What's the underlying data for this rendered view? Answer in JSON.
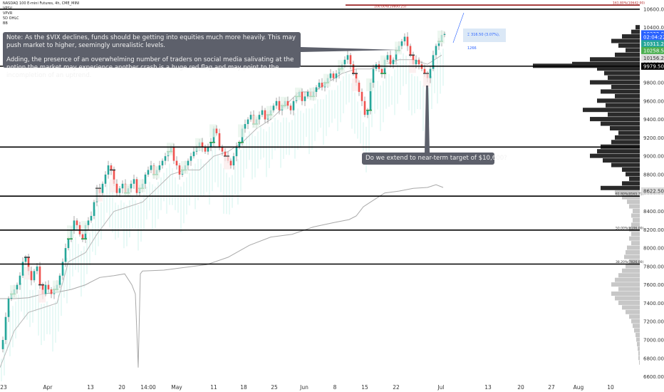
{
  "header": {
    "symbol_line": "NASDAQ 100 E-mini Futures, 4h, CME_MINI",
    "indicators": [
      "VPSV",
      "VPVR",
      "5D OHLC",
      "BB"
    ]
  },
  "annotations": {
    "note_line1": "Note: As the $VIX declines, funds should be getting into equities much more heavily. This may push market to higher, seemingly unrealistic levels.",
    "note_line2": "Adding, the presence of an overwhelming number of traders on social media salivating at the notion the market may experience another crash is a huge red flag and may point to the incompletion of an uptrend.",
    "target_question": "Do we extend to near-term target of $10,600?",
    "measure_label": "316.50 (3.07%), 1266",
    "measure_icon": "vertical-range-icon"
  },
  "colors": {
    "up_candle": "#26a69a",
    "down_candle": "#ef5350",
    "bb_line": "#b8b8b8",
    "profile_dark": "#2a2a2a",
    "profile_light": "#c7c7c7",
    "last_price_bg": "#000000",
    "callout_bg": "#5d606b",
    "blue_accent": "#2962ff"
  },
  "chart_data": {
    "type": "candlestick",
    "ylim": [
      6550,
      10700
    ],
    "y_ticks": [
      6600,
      6800,
      7000,
      7200,
      7400,
      7600,
      7800,
      8000,
      8200,
      8400,
      8600,
      8800,
      9000,
      9200,
      9400,
      9600,
      9800,
      10000,
      10200,
      10400,
      10600
    ],
    "x_tick_labels": [
      "23",
      "Apr",
      "13",
      "20",
      "14:00",
      "May",
      "11",
      "18",
      "25",
      "Jun",
      "8",
      "15",
      "22",
      "Jul",
      "13",
      "20",
      "27",
      "Aug",
      "10"
    ],
    "horizontal_lines": [
      10600,
      9979.5,
      9100,
      8565.75,
      8196,
      7826
    ],
    "fib_labels": [
      {
        "text": "161.80%(10642.00)",
        "price": 10645
      },
      {
        "text": "100.00%(10600.25)",
        "price": 10605
      },
      {
        "text": "61.80%(8565.75)",
        "price": 8565.75
      },
      {
        "text": "50.00%(8196.00)",
        "price": 8196
      },
      {
        "text": "38.20%(7826.00)",
        "price": 7826
      }
    ],
    "price_badges": [
      {
        "text": "10332.00",
        "price": 10332,
        "bg": "#2962ff",
        "fg": "#ffffff"
      },
      {
        "text": "02:04:22",
        "price": 10300,
        "bg": "#2962ff",
        "fg": "#ffffff"
      },
      {
        "text": "10311.25",
        "price": 10225,
        "bg": "#26a69a",
        "fg": "#ffffff"
      },
      {
        "text": "10258.50",
        "price": 10150,
        "bg": "#4caf50",
        "fg": "#ffffff"
      },
      {
        "text": "10156.25",
        "price": 10070,
        "bg": "#dddddd",
        "fg": "#333333"
      },
      {
        "text": "9979.50",
        "price": 9979.5,
        "bg": "#000000",
        "fg": "#ffffff"
      },
      {
        "text": "8622.50",
        "price": 8622.5,
        "bg": "#dddddd",
        "fg": "#333333"
      }
    ],
    "close_path": [
      [
        0,
        6900
      ],
      [
        4,
        7000
      ],
      [
        8,
        7250
      ],
      [
        12,
        7450
      ],
      [
        16,
        7500
      ],
      [
        20,
        7550
      ],
      [
        24,
        7600
      ],
      [
        28,
        7700
      ],
      [
        32,
        7850
      ],
      [
        36,
        7900
      ],
      [
        40,
        7750
      ],
      [
        44,
        7650
      ],
      [
        48,
        7750
      ],
      [
        52,
        7800
      ],
      [
        56,
        7600
      ],
      [
        60,
        7500
      ],
      [
        64,
        7600
      ],
      [
        68,
        7550
      ],
      [
        72,
        7500
      ],
      [
        76,
        7550
      ],
      [
        80,
        7600
      ],
      [
        84,
        7700
      ],
      [
        88,
        7850
      ],
      [
        92,
        8000
      ],
      [
        96,
        8100
      ],
      [
        100,
        8200
      ],
      [
        104,
        8300
      ],
      [
        108,
        8250
      ],
      [
        112,
        8150
      ],
      [
        116,
        8100
      ],
      [
        120,
        8250
      ],
      [
        124,
        8300
      ],
      [
        128,
        8350
      ],
      [
        132,
        8500
      ],
      [
        136,
        8650
      ],
      [
        140,
        8600
      ],
      [
        144,
        8700
      ],
      [
        148,
        8800
      ],
      [
        152,
        8900
      ],
      [
        156,
        8850
      ],
      [
        160,
        8700
      ],
      [
        164,
        8600
      ],
      [
        168,
        8650
      ],
      [
        172,
        8700
      ],
      [
        176,
        8600
      ],
      [
        180,
        8650
      ],
      [
        184,
        8700
      ],
      [
        188,
        8750
      ],
      [
        192,
        8600
      ],
      [
        196,
        8650
      ],
      [
        200,
        8700
      ],
      [
        204,
        8800
      ],
      [
        208,
        8850
      ],
      [
        212,
        8900
      ],
      [
        216,
        8800
      ],
      [
        220,
        8850
      ],
      [
        224,
        8900
      ],
      [
        228,
        8950
      ],
      [
        232,
        9000
      ],
      [
        236,
        9050
      ],
      [
        240,
        9100
      ],
      [
        244,
        8950
      ],
      [
        248,
        8900
      ],
      [
        252,
        8800
      ],
      [
        256,
        8850
      ],
      [
        260,
        8900
      ],
      [
        264,
        8950
      ],
      [
        268,
        9000
      ],
      [
        272,
        9050
      ],
      [
        276,
        9100
      ],
      [
        280,
        9150
      ],
      [
        284,
        9100
      ],
      [
        288,
        9050
      ],
      [
        292,
        9100
      ],
      [
        296,
        9150
      ],
      [
        300,
        9300
      ],
      [
        304,
        9250
      ],
      [
        308,
        9100
      ],
      [
        312,
        9050
      ],
      [
        316,
        9000
      ],
      [
        320,
        8950
      ],
      [
        324,
        8900
      ],
      [
        328,
        9000
      ],
      [
        332,
        9100
      ],
      [
        336,
        9150
      ],
      [
        340,
        9300
      ],
      [
        344,
        9350
      ],
      [
        348,
        9400
      ],
      [
        352,
        9450
      ],
      [
        356,
        9350
      ],
      [
        360,
        9400
      ],
      [
        364,
        9450
      ],
      [
        368,
        9500
      ],
      [
        372,
        9400
      ],
      [
        376,
        9450
      ],
      [
        380,
        9500
      ],
      [
        384,
        9550
      ],
      [
        388,
        9600
      ],
      [
        392,
        9500
      ],
      [
        396,
        9550
      ],
      [
        400,
        9600
      ],
      [
        404,
        9550
      ],
      [
        408,
        9500
      ],
      [
        412,
        9600
      ],
      [
        416,
        9650
      ],
      [
        420,
        9700
      ],
      [
        424,
        9600
      ],
      [
        428,
        9650
      ],
      [
        432,
        9700
      ],
      [
        436,
        9650
      ],
      [
        440,
        9700
      ],
      [
        444,
        9750
      ],
      [
        448,
        9800
      ],
      [
        452,
        9750
      ],
      [
        456,
        9800
      ],
      [
        460,
        9850
      ],
      [
        464,
        9900
      ],
      [
        468,
        9850
      ],
      [
        472,
        9900
      ],
      [
        476,
        9950
      ],
      [
        480,
        10000
      ],
      [
        484,
        10050
      ],
      [
        488,
        10100
      ],
      [
        492,
        10000
      ],
      [
        496,
        9900
      ],
      [
        500,
        9800
      ],
      [
        504,
        9700
      ],
      [
        508,
        9600
      ],
      [
        512,
        9450
      ],
      [
        516,
        9500
      ],
      [
        520,
        9800
      ],
      [
        524,
        9950
      ],
      [
        528,
        10000
      ],
      [
        532,
        9950
      ],
      [
        536,
        9900
      ],
      [
        540,
        10050
      ],
      [
        544,
        10100
      ],
      [
        548,
        10000
      ],
      [
        552,
        10050
      ],
      [
        556,
        10150
      ],
      [
        560,
        10200
      ],
      [
        564,
        10250
      ],
      [
        568,
        10300
      ],
      [
        572,
        10200
      ],
      [
        576,
        10100
      ],
      [
        580,
        10000
      ],
      [
        584,
        10050
      ],
      [
        588,
        10000
      ],
      [
        592,
        9950
      ],
      [
        596,
        9900
      ],
      [
        600,
        9850
      ],
      [
        604,
        9950
      ],
      [
        608,
        10100
      ],
      [
        612,
        10200
      ],
      [
        616,
        10250
      ],
      [
        620,
        10320
      ],
      [
        624,
        10330
      ]
    ],
    "bb_path": [
      [
        0,
        6700
      ],
      [
        20,
        7100
      ],
      [
        40,
        7300
      ],
      [
        60,
        7350
      ],
      [
        80,
        7400
      ],
      [
        96,
        7850
      ],
      [
        120,
        7950
      ],
      [
        136,
        8150
      ],
      [
        160,
        8400
      ],
      [
        180,
        8450
      ],
      [
        200,
        8500
      ],
      [
        220,
        8650
      ],
      [
        240,
        8800
      ],
      [
        260,
        8850
      ],
      [
        280,
        8850
      ],
      [
        300,
        9000
      ],
      [
        320,
        9050
      ],
      [
        340,
        9150
      ],
      [
        360,
        9300
      ],
      [
        380,
        9400
      ],
      [
        400,
        9550
      ],
      [
        420,
        9700
      ],
      [
        440,
        9700
      ],
      [
        460,
        9800
      ],
      [
        480,
        9900
      ],
      [
        500,
        9950
      ],
      [
        520,
        9950
      ],
      [
        540,
        10000
      ],
      [
        560,
        10050
      ],
      [
        580,
        10050
      ],
      [
        600,
        10000
      ],
      [
        620,
        10100
      ]
    ],
    "vwap_path": [
      [
        0,
        7450
      ],
      [
        20,
        7450
      ],
      [
        40,
        7460
      ],
      [
        60,
        7500
      ],
      [
        80,
        7520
      ],
      [
        100,
        7550
      ],
      [
        120,
        7600
      ],
      [
        140,
        7680
      ],
      [
        160,
        7700
      ],
      [
        175,
        7720
      ],
      [
        185,
        7600
      ],
      [
        190,
        7500
      ],
      [
        194,
        6700
      ],
      [
        197,
        7720
      ],
      [
        200,
        7750
      ],
      [
        230,
        7760
      ],
      [
        260,
        7790
      ],
      [
        290,
        7820
      ],
      [
        320,
        7900
      ],
      [
        350,
        8030
      ],
      [
        380,
        8120
      ],
      [
        410,
        8150
      ],
      [
        440,
        8230
      ],
      [
        470,
        8280
      ],
      [
        490,
        8310
      ],
      [
        500,
        8350
      ],
      [
        510,
        8450
      ],
      [
        520,
        8500
      ],
      [
        540,
        8600
      ],
      [
        560,
        8620
      ],
      [
        580,
        8650
      ],
      [
        600,
        8660
      ],
      [
        612,
        8690
      ],
      [
        622,
        8660
      ]
    ],
    "profile": [
      [
        10400,
        6
      ],
      [
        10350,
        12
      ],
      [
        10300,
        25
      ],
      [
        10250,
        40
      ],
      [
        10200,
        30
      ],
      [
        10150,
        20
      ],
      [
        10100,
        35
      ],
      [
        10050,
        70
      ],
      [
        10000,
        95
      ],
      [
        9980,
        150
      ],
      [
        9950,
        60
      ],
      [
        9900,
        50
      ],
      [
        9850,
        45
      ],
      [
        9800,
        70
      ],
      [
        9750,
        40
      ],
      [
        9700,
        55
      ],
      [
        9650,
        35
      ],
      [
        9600,
        60
      ],
      [
        9550,
        48
      ],
      [
        9500,
        80
      ],
      [
        9450,
        45
      ],
      [
        9400,
        70
      ],
      [
        9350,
        55
      ],
      [
        9300,
        42
      ],
      [
        9250,
        30
      ],
      [
        9200,
        35
      ],
      [
        9150,
        40
      ],
      [
        9100,
        55
      ],
      [
        9050,
        60
      ],
      [
        9000,
        70
      ],
      [
        8950,
        52
      ],
      [
        8900,
        40
      ],
      [
        8850,
        25
      ],
      [
        8800,
        20
      ],
      [
        8750,
        15
      ],
      [
        8700,
        25
      ],
      [
        8650,
        55
      ],
      [
        8600,
        35
      ],
      [
        8550,
        25
      ],
      [
        8500,
        18
      ],
      [
        8450,
        15
      ],
      [
        8400,
        10
      ],
      [
        8350,
        12
      ],
      [
        8300,
        10
      ],
      [
        8250,
        12
      ],
      [
        8200,
        15
      ],
      [
        8150,
        12
      ],
      [
        8100,
        15
      ],
      [
        8050,
        12
      ],
      [
        8000,
        18
      ],
      [
        7950,
        20
      ],
      [
        7900,
        22
      ],
      [
        7850,
        15
      ],
      [
        7800,
        20
      ],
      [
        7750,
        25
      ],
      [
        7700,
        30
      ],
      [
        7650,
        35
      ],
      [
        7600,
        40
      ],
      [
        7550,
        30
      ],
      [
        7500,
        40
      ],
      [
        7450,
        35
      ],
      [
        7400,
        30
      ],
      [
        7350,
        25
      ],
      [
        7300,
        20
      ],
      [
        7250,
        15
      ],
      [
        7200,
        12
      ],
      [
        7150,
        10
      ],
      [
        7100,
        8
      ],
      [
        7050,
        6
      ],
      [
        7000,
        5
      ],
      [
        6950,
        4
      ],
      [
        6900,
        3
      ],
      [
        6850,
        2
      ],
      [
        6800,
        2
      ],
      [
        6750,
        1
      ]
    ]
  }
}
